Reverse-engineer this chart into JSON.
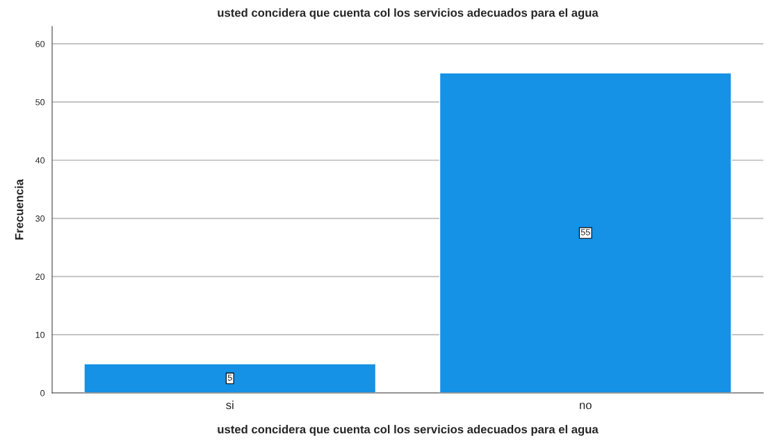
{
  "chart_data": {
    "type": "bar",
    "title": "usted concidera que cuenta col los servicios adecuados para el agua",
    "xlabel": "usted concidera que cuenta col los servicios adecuados para el agua",
    "ylabel": "Frecuencia",
    "categories": [
      "si",
      "no"
    ],
    "values": [
      5,
      55
    ],
    "color": "#1591e6",
    "ylim": [
      0,
      63
    ],
    "yticks": [
      0,
      10,
      20,
      30,
      40,
      50,
      60
    ],
    "grid": "y",
    "data_labels": true
  }
}
